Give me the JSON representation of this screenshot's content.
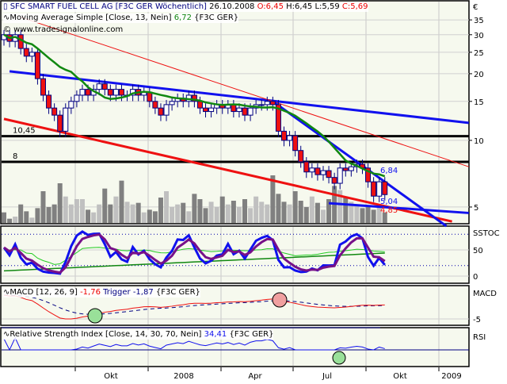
{
  "header": {
    "title": "SFC SMART FUEL CELL AG [F3C GER  Wöchentlich]",
    "date": "26.10.2008",
    "open": "O:6,45",
    "high": "H:6,45",
    "low": "L:5,59",
    "close": "C:5,69",
    "ma_label": "Moving Average Simple [Close, 13, Nein]",
    "ma_value": "6,72",
    "ma_symbol": "{F3C GER}",
    "copyright": "© www.tradesignalonline.com"
  },
  "colors": {
    "background": "#f6f9ee",
    "up": "#ffffff",
    "down": "#ee1111",
    "ma": "#118811",
    "trend_blue": "#1111ee",
    "trend_red": "#ee1111",
    "volume_dark": "#808080",
    "volume_light": "#c0c0c0"
  },
  "chart_data": {
    "type": "candlestick",
    "currency_label": "€",
    "y_ticks": [
      35,
      30,
      25,
      20,
      15,
      10,
      5
    ],
    "y_scale": "log",
    "x_tick_labels": [
      "Okt",
      "2008",
      "Apr",
      "Jul",
      "Okt",
      "2009"
    ],
    "closes": [
      30,
      28,
      30,
      26,
      24,
      25,
      19,
      16,
      14,
      13,
      11,
      14,
      15,
      16,
      17,
      16,
      17,
      18,
      17,
      16,
      17,
      16,
      16,
      17,
      16,
      16.5,
      15,
      14,
      13,
      14.5,
      15,
      15.5,
      15,
      16,
      15,
      14,
      13.5,
      14,
      14.5,
      14,
      14.5,
      13.5,
      14,
      13,
      14,
      14.5,
      14.5,
      15,
      14.5,
      11,
      10,
      10.5,
      9,
      8,
      7.2,
      7.5,
      7,
      7.3,
      6.8,
      6.4,
      7.5,
      7.3,
      7.6,
      7.8,
      7.5,
      6.5,
      5.6,
      6.5,
      5.69
    ],
    "volumes": [
      20,
      8,
      12,
      35,
      22,
      10,
      28,
      60,
      30,
      35,
      75,
      50,
      35,
      45,
      45,
      25,
      20,
      35,
      65,
      35,
      50,
      80,
      40,
      35,
      38,
      20,
      25,
      22,
      48,
      60,
      30,
      35,
      38,
      22,
      55,
      45,
      28,
      40,
      30,
      50,
      35,
      42,
      30,
      45,
      28,
      50,
      40,
      35,
      90,
      55,
      40,
      35,
      60,
      42,
      30,
      50,
      38,
      25,
      45,
      70,
      62,
      50,
      40,
      35,
      28,
      30,
      25,
      35,
      20
    ],
    "horizontal_lines": [
      {
        "value": 10.45,
        "label": "10,45"
      },
      {
        "value": 8,
        "label": "8"
      }
    ],
    "annotations": [
      {
        "label": "6,84",
        "color": "#1111ee"
      },
      {
        "label": "5,04",
        "color": "#1111ee"
      },
      {
        "label": "4,85",
        "color": "#ee1111"
      }
    ],
    "trendlines": [
      {
        "color": "#1111ee",
        "width": 3,
        "from": [
          1,
          20.5
        ],
        "to": [
          83,
          12
        ]
      },
      {
        "color": "#ee1111",
        "width": 1,
        "from": [
          3,
          36
        ],
        "to": [
          83,
          7.6
        ]
      },
      {
        "color": "#ee1111",
        "width": 3,
        "from": [
          0,
          12.5
        ],
        "to": [
          80,
          4.3
        ]
      },
      {
        "color": "#1111ee",
        "width": 3,
        "from": [
          48,
          15
        ],
        "to": [
          79,
          4.1
        ]
      },
      {
        "color": "#1111ee",
        "width": 3,
        "from": [
          58,
          5.2
        ],
        "to": [
          83,
          4.7
        ]
      }
    ],
    "ma_period": 13
  },
  "panels": {
    "sstoch": {
      "label": "SSTOC",
      "ticks": [
        50,
        0
      ]
    },
    "macd": {
      "label": "MACD",
      "legend": "MACD [12, 26, 9]",
      "value": "-1,76",
      "trigger_label": "Trigger",
      "trigger_value": "-1,87",
      "symbol": "{F3C GER}",
      "ticks": [
        -5
      ]
    },
    "rsi": {
      "label": "RSI",
      "legend": "Relative Strength Index [Close, 14, 30, 70, Nein]",
      "value": "34,41",
      "symbol": "{F3C GER}"
    }
  }
}
